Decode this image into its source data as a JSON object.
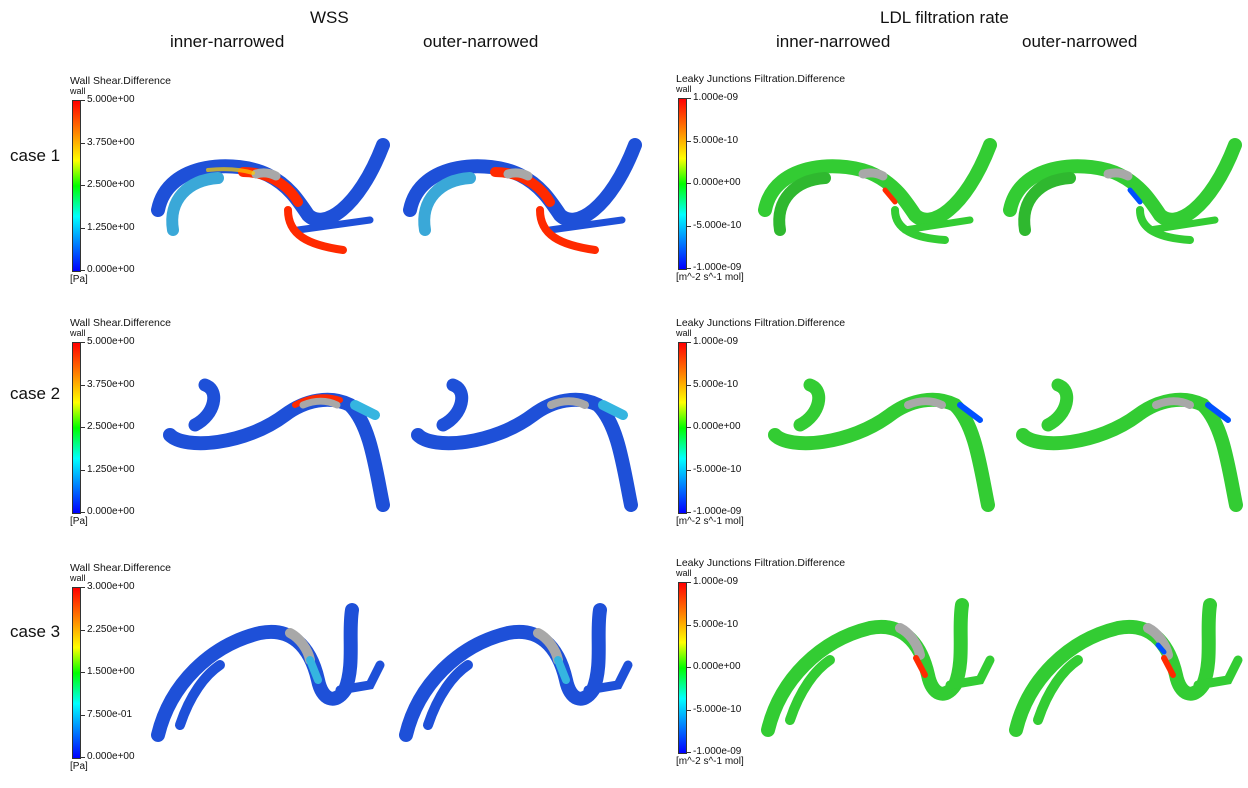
{
  "sections": {
    "wss": "WSS",
    "ldl": "LDL filtration rate"
  },
  "columns": {
    "inner": "inner-narrowed",
    "outer": "outer-narrowed"
  },
  "cases": [
    "case 1",
    "case 2",
    "case 3"
  ],
  "colorbars": {
    "wss_case1": {
      "title": "Wall Shear.Difference",
      "sub": "wall",
      "ticks": [
        "5.000e+00",
        "3.750e+00",
        "2.500e+00",
        "1.250e+00",
        "0.000e+00"
      ],
      "unit": "[Pa]"
    },
    "wss_case2": {
      "title": "Wall Shear.Difference",
      "sub": "wall",
      "ticks": [
        "5.000e+00",
        "3.750e+00",
        "2.500e+00",
        "1.250e+00",
        "0.000e+00"
      ],
      "unit": "[Pa]"
    },
    "wss_case3": {
      "title": "Wall Shear.Difference",
      "sub": "wall",
      "ticks": [
        "3.000e+00",
        "2.250e+00",
        "1.500e+00",
        "7.500e-01",
        "0.000e+00"
      ],
      "unit": "[Pa]"
    },
    "ldl_case1": {
      "title": "Leaky Junctions Filtration.Difference",
      "sub": "wall",
      "ticks": [
        "1.000e-09",
        "5.000e-10",
        "0.000e+00",
        "-5.000e-10",
        "-1.000e-09"
      ],
      "unit": "[m^-2 s^-1 mol]"
    },
    "ldl_case2": {
      "title": "Leaky Junctions Filtration.Difference",
      "sub": "wall",
      "ticks": [
        "1.000e-09",
        "5.000e-10",
        "0.000e+00",
        "-5.000e-10",
        "-1.000e-09"
      ],
      "unit": "[m^-2 s^-1 mol]"
    },
    "ldl_case3": {
      "title": "Leaky Junctions Filtration.Difference",
      "sub": "wall",
      "ticks": [
        "1.000e-09",
        "5.000e-10",
        "0.000e+00",
        "-5.000e-10",
        "-1.000e-09"
      ],
      "unit": "[m^-2 s^-1 mol]"
    }
  },
  "colors": {
    "wss_base": "#1e50d8",
    "wss_mid": "#35b5e0",
    "ldl_base": "#33cc33",
    "stenosis": "#a8a8a8",
    "hot": "#ff2a00",
    "warm": "#ffd000"
  }
}
